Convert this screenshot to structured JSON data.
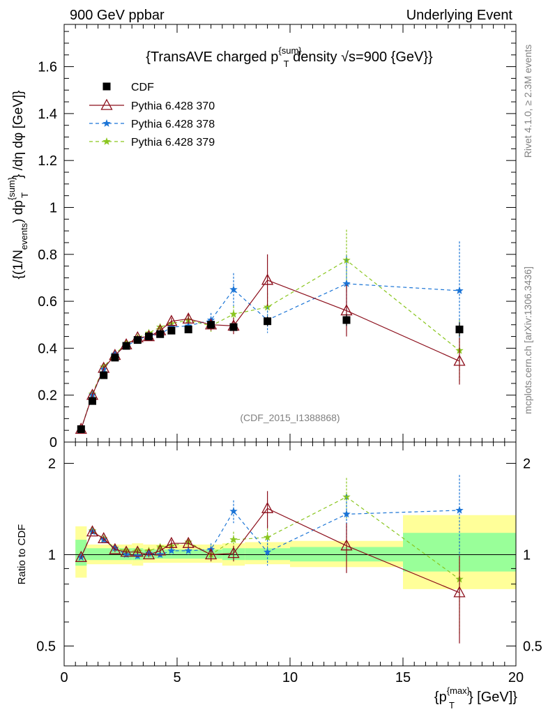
{
  "header": {
    "left": "900 GeV ppbar",
    "right": "Underlying Event"
  },
  "side": {
    "rivet": "Rivet 4.1.0, ≥ 2.3M events",
    "mcplots": "mcplots.cern.ch [arXiv:1306.3436]"
  },
  "chart_data": [
    {
      "type": "scatter",
      "title": "{TransAVE charged p_T^{sum} density √s=900 {GeV}}",
      "title_parts": {
        "pre": "{TransAVE charged p",
        "sup": "{sum}",
        "sub": "T",
        "post": " density √s=900 {GeV}}"
      },
      "ylabel": "{(1/N_events) dp_T^{sum}}/dη dφ [GeV]}",
      "ylabel_parts": {
        "a": "{(1/N",
        "b": "events",
        "c": ") dp",
        "d": "{sum}",
        "e": "T",
        "f": "} /dη  dφ [GeV]}"
      },
      "watermark": "(CDF_2015_I1388868)",
      "xlim": [
        0,
        20
      ],
      "ylim": [
        0,
        1.78
      ],
      "yticks": [
        "0",
        "0.2",
        "0.4",
        "0.6",
        "0.8",
        "1",
        "1.2",
        "1.4",
        "1.6"
      ],
      "ytick_values": [
        0,
        0.2,
        0.4,
        0.6,
        0.8,
        1.0,
        1.2,
        1.4,
        1.6
      ],
      "legend_position": "top-left",
      "x": [
        0.75,
        1.25,
        1.75,
        2.25,
        2.75,
        3.25,
        3.75,
        4.25,
        4.75,
        5.5,
        6.5,
        7.5,
        9.0,
        12.5,
        17.5
      ],
      "series": [
        {
          "name": "CDF",
          "color": "#000000",
          "marker": "square",
          "values": [
            0.055,
            0.175,
            0.285,
            0.36,
            0.41,
            0.435,
            0.45,
            0.46,
            0.475,
            0.48,
            0.5,
            0.49,
            0.515,
            0.52,
            0.48
          ],
          "errors": [
            0.005,
            0.008,
            0.008,
            0.008,
            0.008,
            0.008,
            0.008,
            0.008,
            0.01,
            0.01,
            0.015,
            0.015,
            0.02,
            0.025,
            0.03
          ]
        },
        {
          "name": "Pythia 6.428 370",
          "color": "#8b0d1a",
          "marker": "triangle",
          "dashed": false,
          "values": [
            0.055,
            0.2,
            0.315,
            0.37,
            0.415,
            0.445,
            0.45,
            0.475,
            0.515,
            0.525,
            0.5,
            0.495,
            0.69,
            0.56,
            0.345
          ],
          "errors": [
            0.005,
            0.01,
            0.01,
            0.01,
            0.01,
            0.01,
            0.01,
            0.012,
            0.015,
            0.02,
            0.025,
            0.035,
            0.11,
            0.11,
            0.1
          ]
        },
        {
          "name": "Pythia 6.428 378",
          "color": "#1a74d6",
          "marker": "star",
          "dashed": true,
          "values": [
            0.055,
            0.2,
            0.31,
            0.375,
            0.41,
            0.435,
            0.455,
            0.46,
            0.49,
            0.495,
            0.52,
            0.65,
            0.52,
            0.675,
            0.645
          ],
          "errors": [
            0.005,
            0.01,
            0.01,
            0.01,
            0.01,
            0.01,
            0.01,
            0.012,
            0.015,
            0.02,
            0.03,
            0.07,
            0.055,
            0.12,
            0.21
          ]
        },
        {
          "name": "Pythia 6.428 379",
          "color": "#8ac61f",
          "marker": "star",
          "dashed": true,
          "values": [
            0.055,
            0.205,
            0.32,
            0.375,
            0.42,
            0.445,
            0.465,
            0.49,
            0.505,
            0.52,
            0.495,
            0.545,
            0.575,
            0.775,
            0.39
          ],
          "errors": [
            0.005,
            0.01,
            0.01,
            0.01,
            0.01,
            0.01,
            0.01,
            0.012,
            0.015,
            0.02,
            0.025,
            0.035,
            0.06,
            0.13,
            0.13
          ]
        }
      ]
    },
    {
      "type": "scatter",
      "ylabel": "Ratio to CDF",
      "xlabel": "{p_T^{max}} [GeV]}",
      "xlabel_parts": {
        "a": "{p",
        "b": "{max}",
        "c": "T",
        "d": "} [GeV]}"
      },
      "xlim": [
        0,
        20
      ],
      "ylim": [
        0.43,
        2.35
      ],
      "yscale": "log",
      "xticks": [
        "0",
        "5",
        "10",
        "15",
        "20"
      ],
      "xtick_values": [
        0,
        5,
        10,
        15,
        20
      ],
      "yticks": [
        "0.5",
        "1",
        "2"
      ],
      "ytick_values": [
        0.5,
        1,
        2
      ],
      "bands": [
        {
          "x0": 0.5,
          "x1": 1.0,
          "yellow": [
            0.84,
            1.24
          ],
          "green": [
            0.92,
            1.12
          ]
        },
        {
          "x0": 1.0,
          "x1": 3.0,
          "yellow": [
            0.93,
            1.08
          ],
          "green": [
            0.96,
            1.05
          ]
        },
        {
          "x0": 3.0,
          "x1": 3.5,
          "yellow": [
            0.92,
            1.09
          ],
          "green": [
            0.96,
            1.05
          ]
        },
        {
          "x0": 3.5,
          "x1": 7.0,
          "yellow": [
            0.94,
            1.08
          ],
          "green": [
            0.97,
            1.04
          ]
        },
        {
          "x0": 7.0,
          "x1": 8.0,
          "yellow": [
            0.92,
            1.09
          ],
          "green": [
            0.96,
            1.05
          ]
        },
        {
          "x0": 8.0,
          "x1": 10.0,
          "yellow": [
            0.93,
            1.1
          ],
          "green": [
            0.96,
            1.05
          ]
        },
        {
          "x0": 10.0,
          "x1": 15.0,
          "yellow": [
            0.91,
            1.11
          ],
          "green": [
            0.95,
            1.06
          ]
        },
        {
          "x0": 15.0,
          "x1": 20.0,
          "yellow": [
            0.77,
            1.35
          ],
          "green": [
            0.88,
            1.18
          ]
        }
      ],
      "series": [
        {
          "name": "Pythia 6.428 370",
          "color": "#8b0d1a",
          "marker": "triangle",
          "dashed": false,
          "values": [
            0.98,
            1.19,
            1.13,
            1.04,
            1.02,
            1.02,
            1.0,
            1.03,
            1.09,
            1.09,
            1.0,
            1.01,
            1.42,
            1.07,
            0.75
          ],
          "errors": [
            0.01,
            0.02,
            0.02,
            0.02,
            0.02,
            0.02,
            0.02,
            0.02,
            0.03,
            0.03,
            0.05,
            0.06,
            0.2,
            0.2,
            0.24
          ]
        },
        {
          "name": "Pythia 6.428 378",
          "color": "#1a74d6",
          "marker": "star",
          "dashed": true,
          "values": [
            0.98,
            1.19,
            1.12,
            1.05,
            1.0,
            0.99,
            1.01,
            1.0,
            1.03,
            1.03,
            1.04,
            1.39,
            1.02,
            1.36,
            1.4
          ],
          "errors": [
            0.01,
            0.02,
            0.02,
            0.02,
            0.02,
            0.02,
            0.02,
            0.02,
            0.03,
            0.03,
            0.05,
            0.12,
            0.1,
            0.22,
            0.43
          ]
        },
        {
          "name": "Pythia 6.428 379",
          "color": "#8ac61f",
          "marker": "star",
          "dashed": true,
          "values": [
            0.98,
            1.2,
            1.13,
            1.05,
            1.03,
            1.03,
            1.03,
            1.06,
            1.07,
            1.1,
            1.0,
            1.12,
            1.14,
            1.55,
            0.83
          ],
          "errors": [
            0.01,
            0.02,
            0.02,
            0.02,
            0.02,
            0.02,
            0.02,
            0.02,
            0.03,
            0.03,
            0.05,
            0.07,
            0.11,
            0.24,
            0.28
          ]
        }
      ]
    }
  ]
}
